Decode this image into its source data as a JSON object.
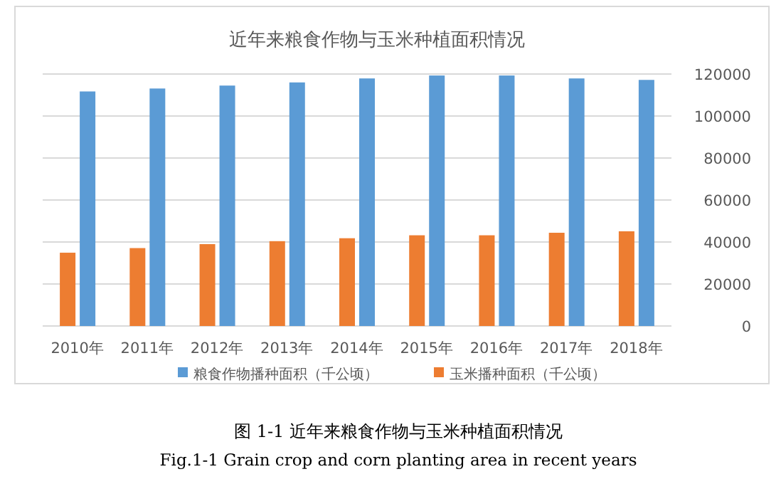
{
  "chart_data": {
    "type": "bar",
    "title": "近年来粮食作物与玉米种植面积情况",
    "categories": [
      "2010年",
      "2011年",
      "2012年",
      "2013年",
      "2014年",
      "2015年",
      "2016年",
      "2017年",
      "2018年"
    ],
    "series": [
      {
        "name": "粮食作物播种面积（千公顷）",
        "color": "#5b9bd5",
        "values": [
          111700,
          113100,
          114500,
          116000,
          117900,
          119300,
          119300,
          117900,
          117200
        ]
      },
      {
        "name": "玉米播种面积（千公顷）",
        "color": "#ed7d31",
        "values": [
          34900,
          37100,
          39000,
          40400,
          41800,
          43200,
          43200,
          44400,
          45100
        ]
      }
    ],
    "ylim": [
      0,
      120000
    ],
    "yticks": [
      0,
      20000,
      40000,
      60000,
      80000,
      100000,
      120000
    ],
    "grid": "y",
    "legend": "bottom",
    "annotations": [
      "图 1-1  近年来粮食作物与玉米种植面积情况",
      "Fig.1-1 Grain crop and corn planting area in recent years"
    ]
  }
}
